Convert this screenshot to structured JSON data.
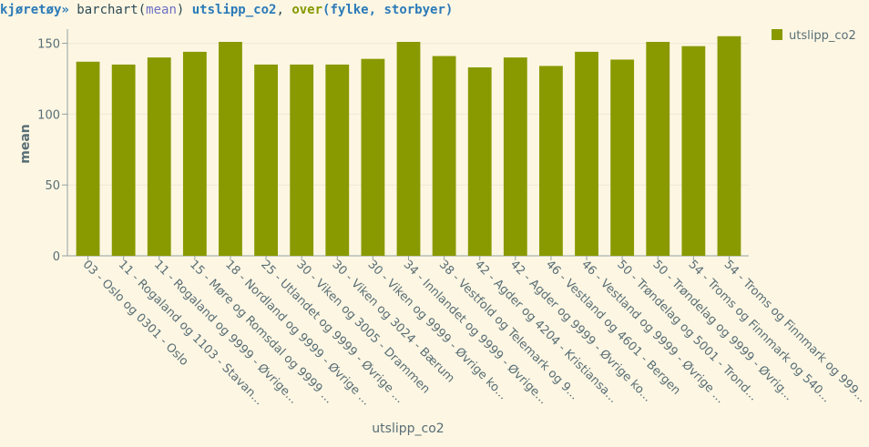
{
  "command": [
    {
      "text": "kjøretøy»",
      "color": "#2a7ab8",
      "bold": true
    },
    {
      "text": " barchart(",
      "color": "#2b4a55",
      "bold": false
    },
    {
      "text": "mean",
      "color": "#6c71c4",
      "bold": false
    },
    {
      "text": ") ",
      "color": "#2b4a55",
      "bold": false
    },
    {
      "text": "utslipp_co2",
      "color": "#2a7ab8",
      "bold": true
    },
    {
      "text": ", ",
      "color": "#2b4a55",
      "bold": false
    },
    {
      "text": "over",
      "color": "#859900",
      "bold": true
    },
    {
      "text": "(fylke, storbyer)",
      "color": "#2a7ab8",
      "bold": true
    }
  ],
  "chart_data": {
    "type": "bar",
    "x_label": "utslipp_co2",
    "y_label": "mean",
    "categories": [
      "03 - Oslo og 0301 - Oslo",
      "11 - Rogaland og 1103 - Stavan...",
      "11 - Rogaland og 9999 - Øvrige...",
      "15 - Møre og Romsdal og 9999 ...",
      "18 - Nordland og 9999 - Øvrige ...",
      "25 - Utlandet og 9999 - Øvrige ...",
      "30 - Viken og 3005 - Drammen",
      "30 - Viken og 3024 - Bærum",
      "30 - Viken og 9999 - Øvrige ko...",
      "34 - Innlandet og 9999 - Øvrige...",
      "38 - Vestfold og Telemark og 9...",
      "42 - Agder og 4204 - Kristiansa...",
      "42 - Agder og 9999 - Øvrige ko...",
      "46 - Vestland og 4601 - Bergen",
      "46 - Vestland og 9999 - Øvrige ...",
      "50 - Trøndelag og 5001 - Trond...",
      "50 - Trøndelag og 9999 - Øvrig...",
      "54 - Troms og Finnmark og 540...",
      "54 - Troms og Finnmark og 999..."
    ],
    "series": [
      {
        "name": "utslipp_co2",
        "color": "#889a00",
        "values": [
          137,
          135,
          140,
          144,
          151,
          135,
          135,
          135,
          139,
          151,
          141,
          133,
          140,
          134,
          144,
          138.5,
          151,
          148,
          155
        ]
      }
    ],
    "ylim": [
      0,
      160
    ],
    "yticks": [
      0,
      50,
      100,
      150
    ],
    "grid": true,
    "legend": "top-right"
  }
}
